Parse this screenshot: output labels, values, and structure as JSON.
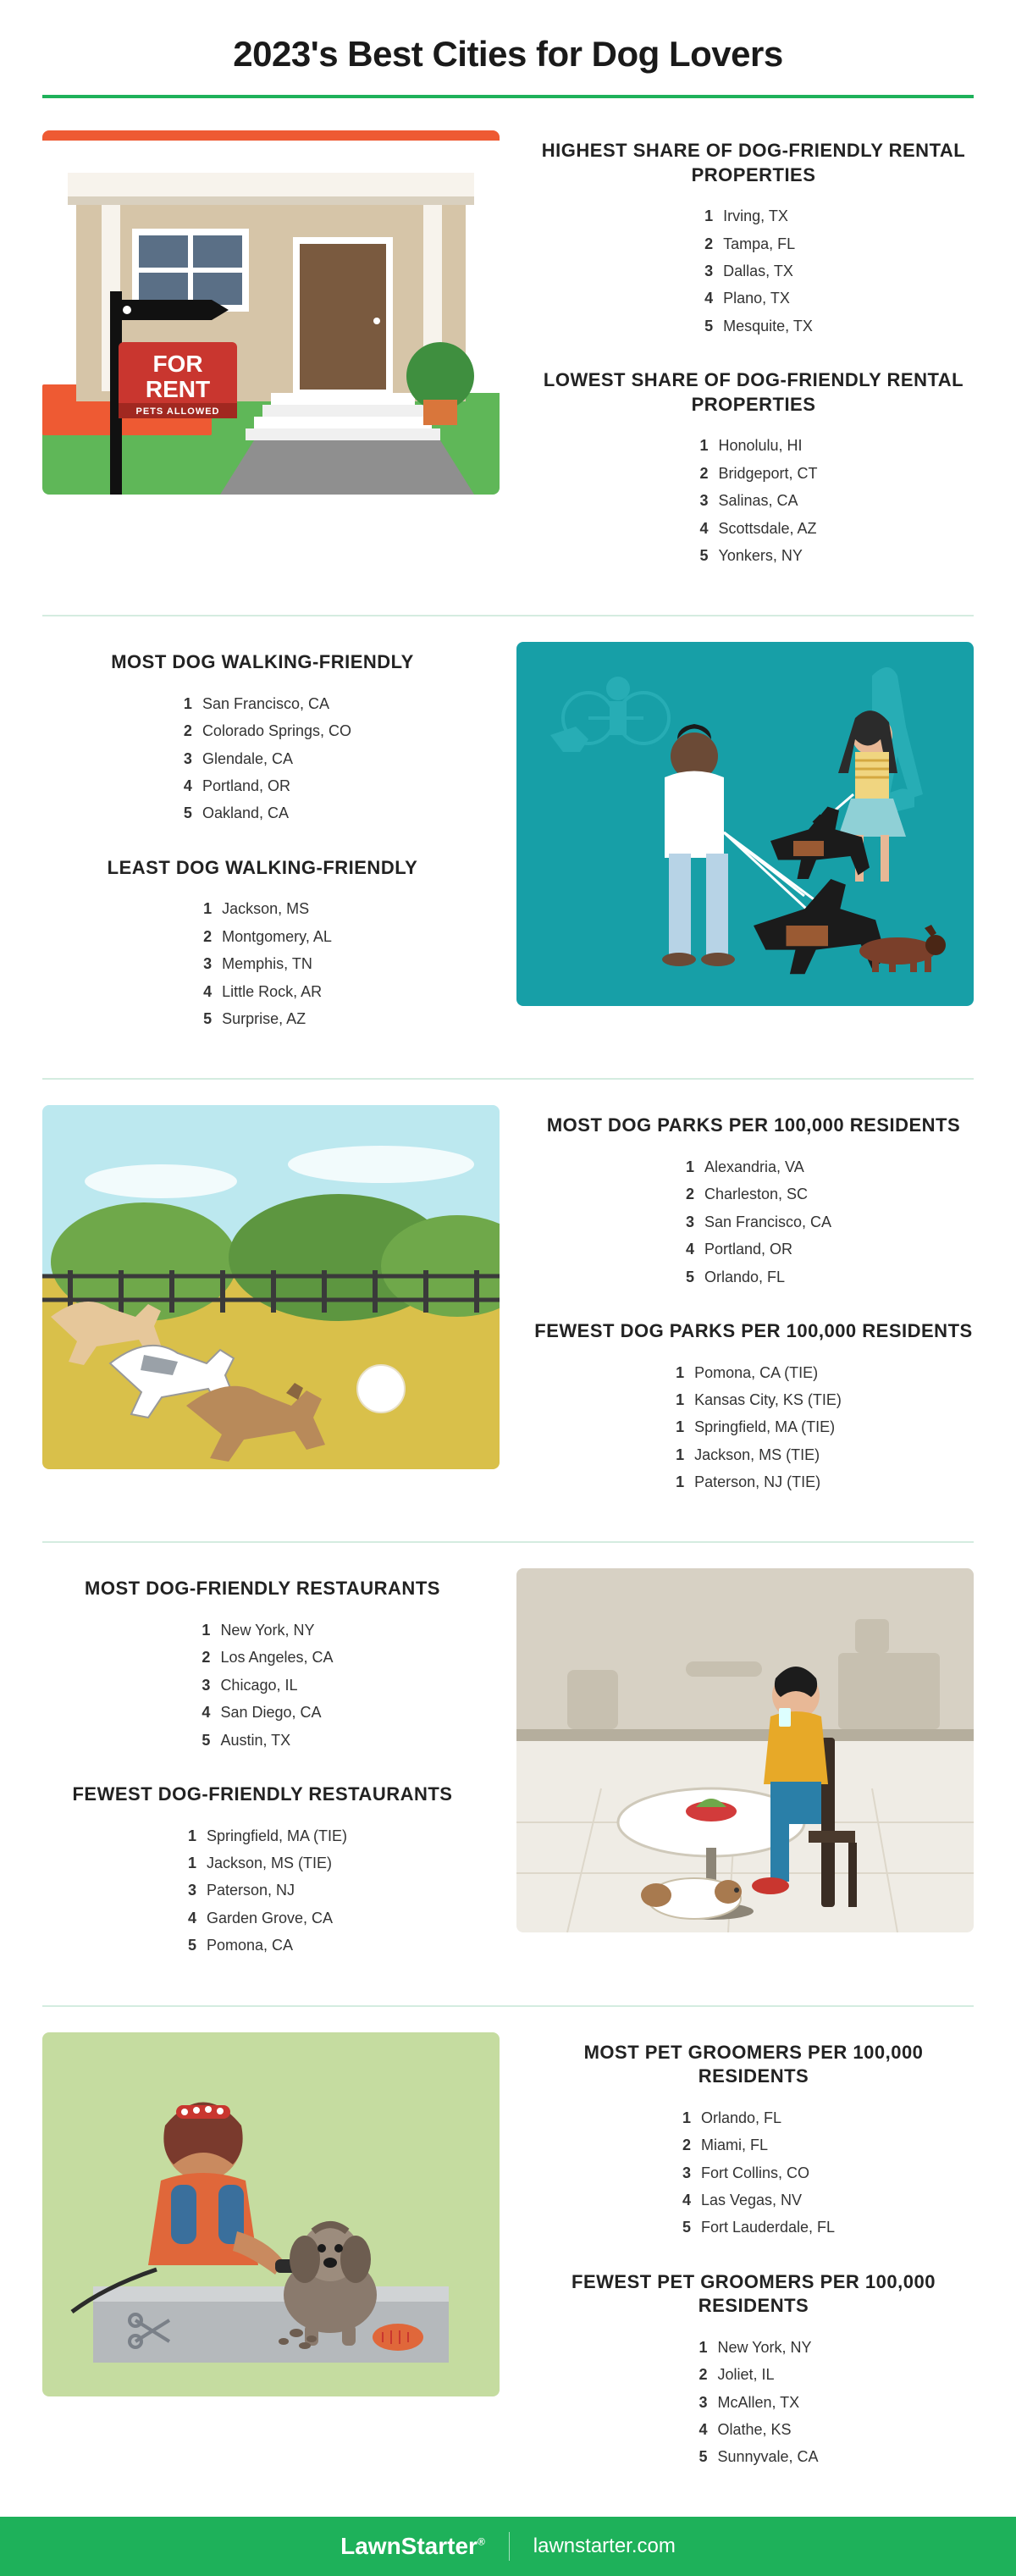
{
  "title": "2023's Best Cities for Dog Lovers",
  "colors": {
    "accent_green": "#1eb15a",
    "divider_light": "#d4ece0",
    "text_dark": "#1a1a1a",
    "text_body": "#333333"
  },
  "sections": [
    {
      "id": "rental",
      "illus_side": "left",
      "illus_type": "house-for-rent",
      "blocks": [
        {
          "title": "HIGHEST SHARE OF DOG-FRIENDLY RENTAL PROPERTIES",
          "items": [
            {
              "rank": "1",
              "label": "Irving, TX"
            },
            {
              "rank": "2",
              "label": "Tampa, FL"
            },
            {
              "rank": "3",
              "label": "Dallas, TX"
            },
            {
              "rank": "4",
              "label": "Plano, TX"
            },
            {
              "rank": "5",
              "label": "Mesquite, TX"
            }
          ]
        },
        {
          "title": "LOWEST SHARE OF DOG-FRIENDLY RENTAL PROPERTIES",
          "items": [
            {
              "rank": "1",
              "label": "Honolulu, HI"
            },
            {
              "rank": "2",
              "label": "Bridgeport, CT"
            },
            {
              "rank": "3",
              "label": "Salinas, CA"
            },
            {
              "rank": "4",
              "label": "Scottsdale, AZ"
            },
            {
              "rank": "5",
              "label": "Yonkers, NY"
            }
          ]
        }
      ]
    },
    {
      "id": "walking",
      "illus_side": "right",
      "illus_type": "dog-walking",
      "blocks": [
        {
          "title": "MOST DOG WALKING-FRIENDLY",
          "items": [
            {
              "rank": "1",
              "label": "San Francisco, CA"
            },
            {
              "rank": "2",
              "label": "Colorado Springs, CO"
            },
            {
              "rank": "3",
              "label": "Glendale, CA"
            },
            {
              "rank": "4",
              "label": "Portland, OR"
            },
            {
              "rank": "5",
              "label": "Oakland, CA"
            }
          ]
        },
        {
          "title": "LEAST DOG WALKING-FRIENDLY",
          "items": [
            {
              "rank": "1",
              "label": "Jackson, MS"
            },
            {
              "rank": "2",
              "label": "Montgomery, AL"
            },
            {
              "rank": "3",
              "label": "Memphis, TN"
            },
            {
              "rank": "4",
              "label": "Little Rock, AR"
            },
            {
              "rank": "5",
              "label": "Surprise, AZ"
            }
          ]
        }
      ]
    },
    {
      "id": "parks",
      "illus_side": "left",
      "illus_type": "dog-park",
      "blocks": [
        {
          "title": "MOST DOG PARKS PER 100,000 RESIDENTS",
          "items": [
            {
              "rank": "1",
              "label": "Alexandria, VA"
            },
            {
              "rank": "2",
              "label": "Charleston, SC"
            },
            {
              "rank": "3",
              "label": "San Francisco, CA"
            },
            {
              "rank": "4",
              "label": "Portland, OR"
            },
            {
              "rank": "5",
              "label": "Orlando, FL"
            }
          ]
        },
        {
          "title": "FEWEST DOG PARKS PER 100,000 RESIDENTS",
          "items": [
            {
              "rank": "1",
              "label": "Pomona, CA (TIE)"
            },
            {
              "rank": "1",
              "label": "Kansas City, KS (TIE)"
            },
            {
              "rank": "1",
              "label": "Springfield, MA (TIE)"
            },
            {
              "rank": "1",
              "label": "Jackson, MS (TIE)"
            },
            {
              "rank": "1",
              "label": "Paterson, NJ (TIE)"
            }
          ]
        }
      ]
    },
    {
      "id": "restaurants",
      "illus_side": "right",
      "illus_type": "restaurant",
      "blocks": [
        {
          "title": "MOST DOG-FRIENDLY RESTAURANTS",
          "items": [
            {
              "rank": "1",
              "label": "New York, NY"
            },
            {
              "rank": "2",
              "label": "Los Angeles, CA"
            },
            {
              "rank": "3",
              "label": "Chicago, IL"
            },
            {
              "rank": "4",
              "label": "San Diego, CA"
            },
            {
              "rank": "5",
              "label": "Austin, TX"
            }
          ]
        },
        {
          "title": "FEWEST DOG-FRIENDLY RESTAURANTS",
          "items": [
            {
              "rank": "1",
              "label": "Springfield, MA (TIE)"
            },
            {
              "rank": "1",
              "label": "Jackson, MS (TIE)"
            },
            {
              "rank": "3",
              "label": "Paterson, NJ"
            },
            {
              "rank": "4",
              "label": "Garden Grove, CA"
            },
            {
              "rank": "5",
              "label": "Pomona, CA"
            }
          ]
        }
      ]
    },
    {
      "id": "groomers",
      "illus_side": "left",
      "illus_type": "groomer",
      "blocks": [
        {
          "title": "MOST PET GROOMERS PER 100,000 RESIDENTS",
          "items": [
            {
              "rank": "1",
              "label": "Orlando, FL"
            },
            {
              "rank": "2",
              "label": "Miami, FL"
            },
            {
              "rank": "3",
              "label": "Fort Collins, CO"
            },
            {
              "rank": "4",
              "label": "Las Vegas, NV"
            },
            {
              "rank": "5",
              "label": "Fort Lauderdale, FL"
            }
          ]
        },
        {
          "title": "FEWEST PET GROOMERS PER 100,000 RESIDENTS",
          "items": [
            {
              "rank": "1",
              "label": "New York, NY"
            },
            {
              "rank": "2",
              "label": "Joliet, IL"
            },
            {
              "rank": "3",
              "label": "McAllen, TX"
            },
            {
              "rank": "4",
              "label": "Olathe, KS"
            },
            {
              "rank": "5",
              "label": "Sunnyvale, CA"
            }
          ]
        }
      ]
    }
  ],
  "illus": {
    "house-for-rent": {
      "sign_main": "FOR",
      "sign_sub": "RENT",
      "sign_tag": "PETS ALLOWED"
    }
  },
  "footer": {
    "brand": "LawnStarter",
    "url": "lawnstarter.com"
  }
}
